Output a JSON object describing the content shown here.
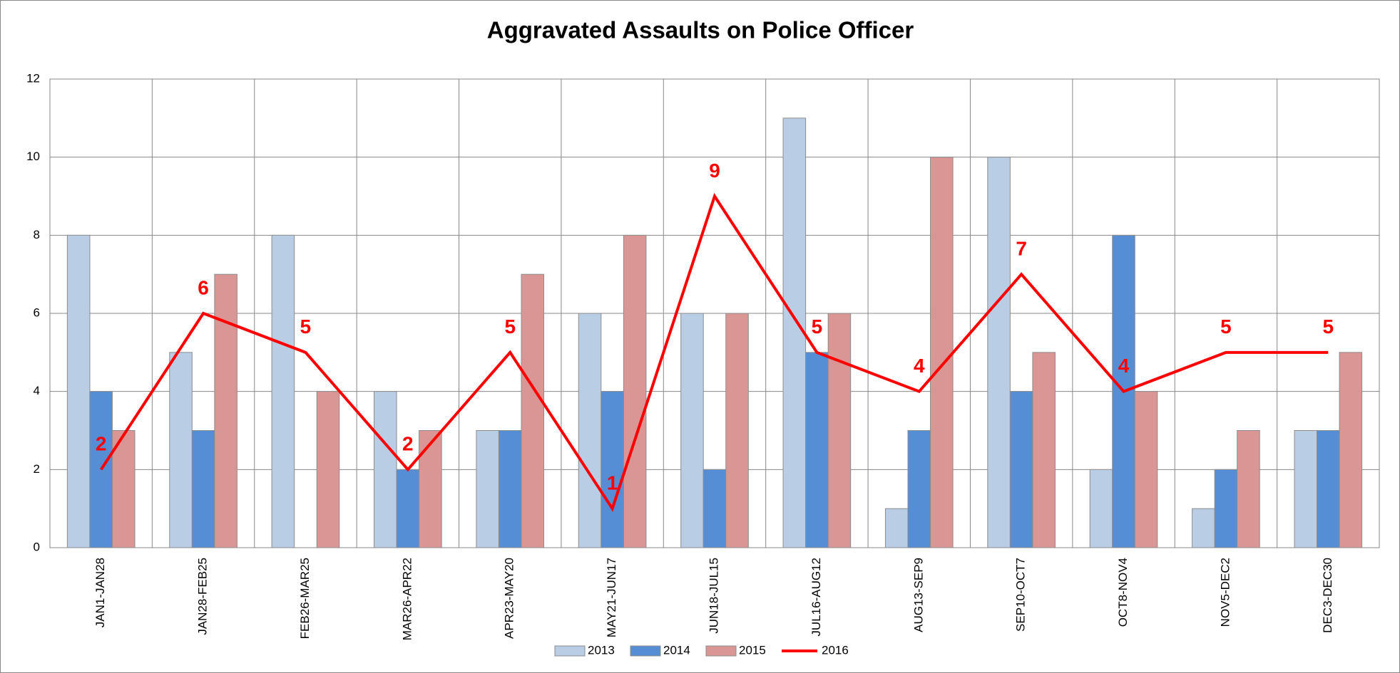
{
  "chart_data": {
    "type": "bar-line",
    "title": "Aggravated Assaults on Police Officer",
    "categories": [
      "JAN1-JAN28",
      "JAN28-FEB25",
      "FEB26-MAR25",
      "MAR26-APR22",
      "APR23-MAY20",
      "MAY21-JUN17",
      "JUN18-JUL15",
      "JUL16-AUG12",
      "AUG13-SEP9",
      "SEP10-OCT7",
      "OCT8-NOV4",
      "NOV5-DEC2",
      "DEC3-DEC30"
    ],
    "series": [
      {
        "name": "2013",
        "type": "bar",
        "color": "#b9cde5",
        "values": [
          8,
          5,
          8,
          4,
          3,
          6,
          6,
          11,
          1,
          10,
          2,
          1,
          3
        ]
      },
      {
        "name": "2014",
        "type": "bar",
        "color": "#558ed5",
        "values": [
          4,
          3,
          0,
          2,
          3,
          4,
          2,
          5,
          3,
          4,
          8,
          2,
          3
        ]
      },
      {
        "name": "2015",
        "type": "bar",
        "color": "#d99694",
        "values": [
          3,
          7,
          4,
          3,
          7,
          8,
          6,
          6,
          10,
          5,
          4,
          3,
          5
        ]
      },
      {
        "name": "2016",
        "type": "line",
        "color": "#ff0000",
        "values": [
          2,
          6,
          5,
          2,
          5,
          1,
          9,
          5,
          4,
          7,
          4,
          5,
          5
        ]
      }
    ],
    "ylim": [
      0,
      12
    ],
    "yticks": [
      0,
      2,
      4,
      6,
      8,
      10,
      12
    ],
    "grid": true,
    "legend": "bottom"
  }
}
